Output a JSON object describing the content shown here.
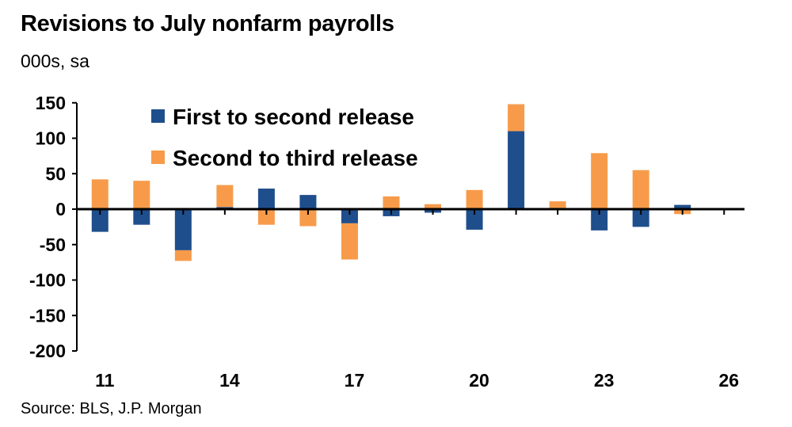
{
  "header": {
    "title": "Revisions to July nonfarm payrolls",
    "subtitle": "000s, sa"
  },
  "footer": {
    "source": "Source: BLS, J.P. Morgan"
  },
  "chart_data": {
    "type": "bar",
    "stacked": true,
    "x": [
      11,
      12,
      13,
      14,
      15,
      16,
      17,
      18,
      19,
      20,
      21,
      22,
      23,
      24,
      25
    ],
    "x_tick_labels": [
      "11",
      "14",
      "17",
      "20",
      "23",
      "26"
    ],
    "x_tick_values": [
      11,
      14,
      17,
      20,
      23,
      26
    ],
    "xlim": [
      10.5,
      26.5
    ],
    "ylim": [
      -200,
      150
    ],
    "y_ticks": [
      150,
      100,
      50,
      0,
      -50,
      -100,
      -150,
      -200
    ],
    "y_tick_labels": [
      "150",
      "100",
      "50",
      "0",
      "-50",
      "-100",
      "-150",
      "-200"
    ],
    "grid": false,
    "legend_position": "top-center",
    "series": [
      {
        "name": "First to second release",
        "color": "#1f4e8c",
        "values": [
          -32,
          -22,
          -58,
          3,
          29,
          20,
          -20,
          -10,
          -5,
          -29,
          110,
          0,
          -30,
          -25,
          6
        ]
      },
      {
        "name": "Second to third release",
        "color": "#f79b4a",
        "values": [
          42,
          40,
          -15,
          31,
          -22,
          -24,
          -51,
          18,
          7,
          27,
          38,
          11,
          79,
          55,
          -7
        ]
      }
    ]
  }
}
